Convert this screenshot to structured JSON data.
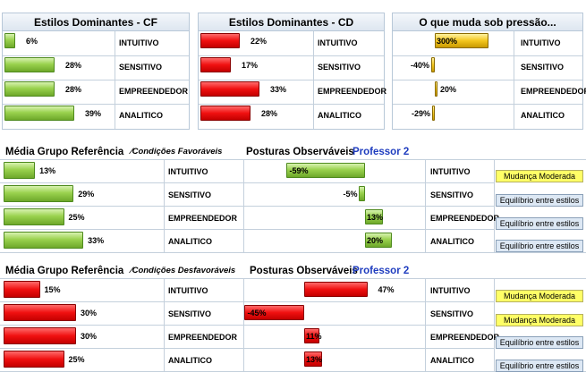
{
  "top_panels": [
    {
      "title": "Estilos Dominantes - CF",
      "color": "#7ec83a",
      "rows": [
        {
          "label": "INTUITIVO",
          "value": 6,
          "value_text": "6%"
        },
        {
          "label": "SENSITIVO",
          "value": 28,
          "value_text": "28%"
        },
        {
          "label": "EMPREENDEDOR",
          "value": 28,
          "value_text": "28%"
        },
        {
          "label": "ANALITICO",
          "value": 39,
          "value_text": "39%"
        }
      ]
    },
    {
      "title": "Estilos Dominantes - CD",
      "color": "#e81010",
      "rows": [
        {
          "label": "INTUITIVO",
          "value": 22,
          "value_text": "22%"
        },
        {
          "label": "SENSITIVO",
          "value": 17,
          "value_text": "17%"
        },
        {
          "label": "EMPREENDEDOR",
          "value": 33,
          "value_text": "33%"
        },
        {
          "label": "ANALITICO",
          "value": 28,
          "value_text": "28%"
        }
      ]
    },
    {
      "title": "O que muda sob pressão...",
      "color": "#f3c61e",
      "rows": [
        {
          "label": "INTUITIVO",
          "value": 300,
          "value_text": "300%"
        },
        {
          "label": "SENSITIVO",
          "value": -40,
          "value_text": "-40%"
        },
        {
          "label": "EMPREENDEDOR",
          "value": 20,
          "value_text": "20%"
        },
        {
          "label": "ANALITICO",
          "value": -29,
          "value_text": "-29%"
        }
      ]
    }
  ],
  "sections": [
    {
      "heading": "Média Grupo Referência",
      "condition": "⁄Condições Favoráveis",
      "postures_title": "Posturas Observáveis",
      "professor": "Professor 2",
      "color": "#7ec83a",
      "rows": [
        {
          "label": "INTUITIVO",
          "group": 13,
          "group_text": "13%",
          "posture": -59,
          "posture_text": "-59%",
          "right_label": "INTUITIVO",
          "badge": "Mudança Moderada",
          "badge_style": "yellow"
        },
        {
          "label": "SENSITIVO",
          "group": 29,
          "group_text": "29%",
          "posture": -5,
          "posture_text": "-5%",
          "right_label": "SENSITIVO",
          "badge": "Equilíbrio entre estilos",
          "badge_style": "blue"
        },
        {
          "label": "EMPREENDEDOR",
          "group": 25,
          "group_text": "25%",
          "posture": 13,
          "posture_text": "13%",
          "right_label": "EMPREENDEDOR",
          "badge": "Equilíbrio entre estilos",
          "badge_style": "blue"
        },
        {
          "label": "ANALITICO",
          "group": 33,
          "group_text": "33%",
          "posture": 20,
          "posture_text": "20%",
          "right_label": "ANALITICO",
          "badge": "Equilíbrio entre estilos",
          "badge_style": "blue"
        }
      ]
    },
    {
      "heading": "Média Grupo Referência",
      "condition": "⁄Condições Desfavoráveis",
      "postures_title": "Posturas Observáveis",
      "professor": "Professor 2",
      "color": "#e81010",
      "rows": [
        {
          "label": "INTUITIVO",
          "group": 15,
          "group_text": "15%",
          "posture": 47,
          "posture_text": "47%",
          "right_label": "INTUITIVO",
          "badge": "Mudança Moderada",
          "badge_style": "yellow"
        },
        {
          "label": "SENSITIVO",
          "group": 30,
          "group_text": "30%",
          "posture": -45,
          "posture_text": "-45%",
          "right_label": "SENSITIVO",
          "badge": "Mudança Moderada",
          "badge_style": "yellow"
        },
        {
          "label": "EMPREENDEDOR",
          "group": 30,
          "group_text": "30%",
          "posture": 11,
          "posture_text": "11%",
          "right_label": "EMPREENDEDOR",
          "badge": "Equilíbrio entre estilos",
          "badge_style": "blue"
        },
        {
          "label": "ANALITICO",
          "group": 25,
          "group_text": "25%",
          "posture": 13,
          "posture_text": "13%",
          "right_label": "ANALITICO",
          "badge": "Equilíbrio entre estilos",
          "badge_style": "blue"
        }
      ]
    }
  ],
  "chart_data": [
    {
      "type": "bar",
      "title": "Estilos Dominantes - CF",
      "categories": [
        "INTUITIVO",
        "SENSITIVO",
        "EMPREENDEDOR",
        "ANALITICO"
      ],
      "values": [
        6,
        28,
        28,
        39
      ]
    },
    {
      "type": "bar",
      "title": "Estilos Dominantes - CD",
      "categories": [
        "INTUITIVO",
        "SENSITIVO",
        "EMPREENDEDOR",
        "ANALITICO"
      ],
      "values": [
        22,
        17,
        33,
        28
      ]
    },
    {
      "type": "bar",
      "title": "O que muda sob pressão...",
      "categories": [
        "INTUITIVO",
        "SENSITIVO",
        "EMPREENDEDOR",
        "ANALITICO"
      ],
      "values": [
        300,
        -40,
        20,
        -29
      ]
    },
    {
      "type": "bar",
      "title": "Média Grupo Referência ⁄Condições Favoráveis",
      "categories": [
        "INTUITIVO",
        "SENSITIVO",
        "EMPREENDEDOR",
        "ANALITICO"
      ],
      "values": [
        13,
        29,
        25,
        33
      ]
    },
    {
      "type": "bar",
      "title": "Posturas Observáveis",
      "categories": [
        "INTUITIVO",
        "SENSITIVO",
        "EMPREENDEDOR",
        "ANALITICO"
      ],
      "values": [
        -59,
        -5,
        13,
        20
      ]
    },
    {
      "type": "bar",
      "title": "Média Grupo Referência ⁄Condições Desfavoráveis",
      "categories": [
        "INTUITIVO",
        "SENSITIVO",
        "EMPREENDEDOR",
        "ANALITICO"
      ],
      "values": [
        15,
        30,
        30,
        25
      ]
    },
    {
      "type": "bar",
      "title": "Posturas Observáveis",
      "categories": [
        "INTUITIVO",
        "SENSITIVO",
        "EMPREENDEDOR",
        "ANALITICO"
      ],
      "values": [
        47,
        -45,
        11,
        13
      ]
    }
  ]
}
